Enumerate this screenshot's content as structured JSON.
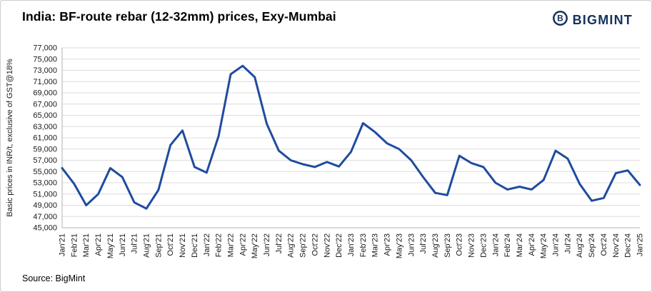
{
  "page": {
    "source": "Source: BigMint"
  },
  "brand": {
    "name": "BIGMINT",
    "color": "#14325c",
    "icon": "bigmint-emblem"
  },
  "chart_data": {
    "type": "line",
    "title": "India: BF-route rebar (12-32mm) prices, Exy-Mumbai",
    "xlabel": "",
    "ylabel": "Basic prices in INR/t, exclusive of GST@18%",
    "ylim": [
      45000,
      77000
    ],
    "ytick_step": 2000,
    "grid": true,
    "legend": "none",
    "line_color": "#1f4ba0",
    "x": [
      "Jan'21",
      "Feb'21",
      "Mar'21",
      "Apr'21",
      "May'21",
      "Jun'21",
      "Jul'21",
      "Aug'21",
      "Sep'21",
      "Oct'21",
      "Nov'21",
      "Dec'21",
      "Jan'22",
      "Feb'22",
      "Mar'22",
      "Apr'22",
      "May'22",
      "Jun'22",
      "Jul'22",
      "Aug'22",
      "Sep'22",
      "Oct'22",
      "Nov'22",
      "Dec'22",
      "Jan'23",
      "Feb'23",
      "Mar'23",
      "Apr'23",
      "May'23",
      "Jun'23",
      "Jul'23",
      "Aug'23",
      "Sep'23",
      "Oct'23",
      "Nov'23",
      "Dec'23",
      "Jan'24",
      "Feb'24",
      "Mar'24",
      "Apr'24",
      "May'24",
      "Jun'24",
      "Jul'24",
      "Aug'24",
      "Sep'24",
      "Oct'24",
      "Nov'24",
      "Dec'24",
      "Jan'25"
    ],
    "values": [
      55600,
      52800,
      49000,
      51000,
      55600,
      54000,
      49500,
      48400,
      51700,
      59700,
      62300,
      55800,
      54800,
      61300,
      72300,
      73800,
      71800,
      63500,
      58700,
      57000,
      56300,
      55800,
      56700,
      55900,
      58500,
      63600,
      62000,
      60000,
      59000,
      57000,
      54000,
      51200,
      50800,
      57800,
      56500,
      55800,
      53000,
      51800,
      52300,
      51800,
      53500,
      58700,
      57300,
      52800,
      49800,
      50300,
      54700,
      55200,
      52600
    ]
  }
}
